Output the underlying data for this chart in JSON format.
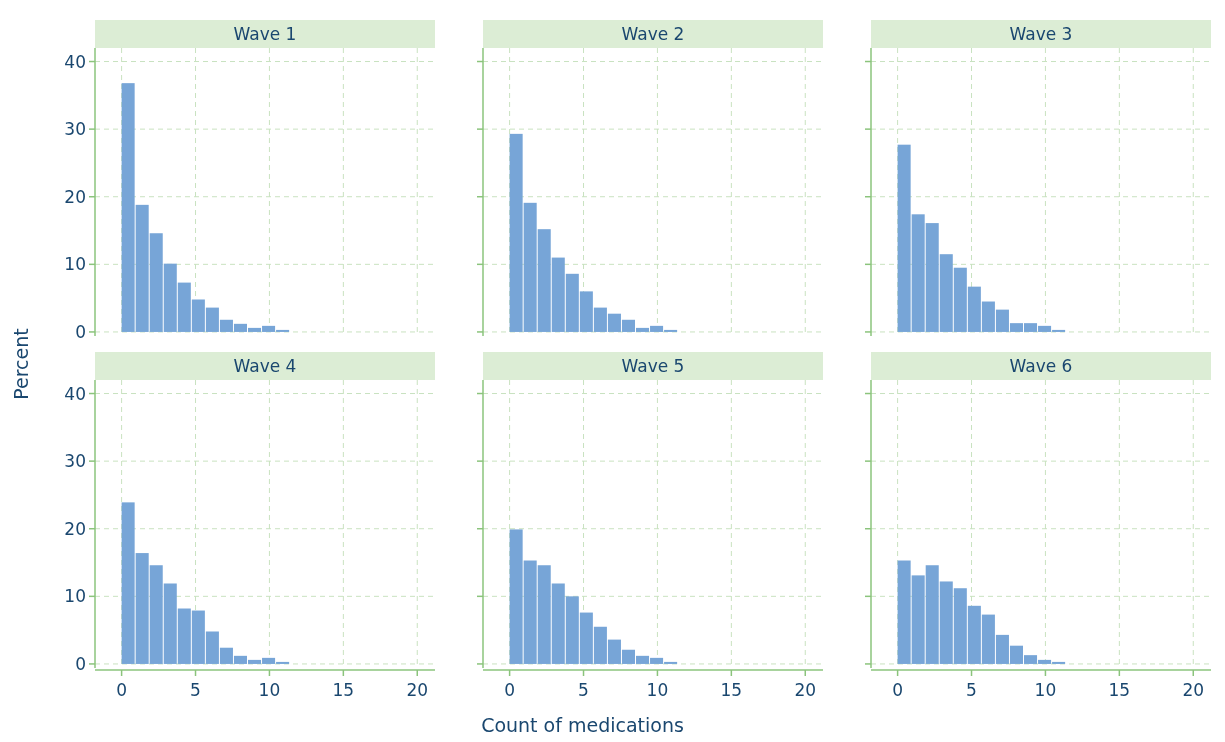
{
  "chart_data": [
    {
      "type": "histogram",
      "title": "Wave 1",
      "ylabel": "Percent",
      "bins": [
        0,
        0.95,
        1.9,
        2.85,
        3.8,
        4.75,
        5.7,
        6.65,
        7.6,
        8.55,
        9.5,
        10.45,
        11.4
      ],
      "values": [
        36.8,
        18.8,
        14.6,
        10.1,
        7.3,
        4.8,
        3.6,
        1.8,
        1.2,
        0.6,
        0.9,
        0.3
      ],
      "color": "#77a5d7",
      "xlim": [
        -1.8,
        21.2
      ],
      "xticks": [
        0,
        5,
        10,
        15,
        20
      ],
      "ylim": [
        -0.6,
        42
      ],
      "yticks": [
        0,
        10,
        20,
        30,
        40
      ],
      "grid": true,
      "tick_labels": "y"
    },
    {
      "type": "histogram",
      "title": "Wave 2",
      "bins": [
        0,
        0.95,
        1.9,
        2.85,
        3.8,
        4.75,
        5.7,
        6.65,
        7.6,
        8.55,
        9.5,
        10.45,
        11.4
      ],
      "values": [
        29.3,
        19.1,
        15.2,
        11.0,
        8.6,
        6.0,
        3.6,
        2.7,
        1.8,
        0.6,
        0.9,
        0.3
      ],
      "color": "#77a5d7",
      "xlim": [
        -1.8,
        21.2
      ],
      "xticks": [
        0,
        5,
        10,
        15,
        20
      ],
      "ylim": [
        -0.6,
        42
      ],
      "yticks": [
        0,
        10,
        20,
        30,
        40
      ],
      "grid": true,
      "tick_labels": false
    },
    {
      "type": "histogram",
      "title": "Wave 3",
      "bins": [
        0,
        0.95,
        1.9,
        2.85,
        3.8,
        4.75,
        5.7,
        6.65,
        7.6,
        8.55,
        9.5,
        10.45,
        11.4
      ],
      "values": [
        27.7,
        17.4,
        16.1,
        11.5,
        9.5,
        6.7,
        4.5,
        3.3,
        1.3,
        1.3,
        0.9,
        0.3
      ],
      "color": "#77a5d7",
      "xlim": [
        -1.8,
        21.2
      ],
      "xticks": [
        0,
        5,
        10,
        15,
        20
      ],
      "ylim": [
        -0.6,
        42
      ],
      "yticks": [
        0,
        10,
        20,
        30,
        40
      ],
      "grid": true,
      "tick_labels": false
    },
    {
      "type": "histogram",
      "title": "Wave 4",
      "bins": [
        0,
        0.95,
        1.9,
        2.85,
        3.8,
        4.75,
        5.7,
        6.65,
        7.6,
        8.55,
        9.5,
        10.45,
        11.4
      ],
      "values": [
        23.9,
        16.4,
        14.6,
        11.9,
        8.2,
        7.9,
        4.8,
        2.4,
        1.2,
        0.6,
        0.9,
        0.3
      ],
      "color": "#77a5d7",
      "xlim": [
        -1.8,
        21.2
      ],
      "xticks": [
        0,
        5,
        10,
        15,
        20
      ],
      "ylim": [
        -0.6,
        42
      ],
      "yticks": [
        0,
        10,
        20,
        30,
        40
      ],
      "grid": true
    },
    {
      "type": "histogram",
      "title": "Wave 5",
      "xlabel": "Count of medications",
      "bins": [
        0,
        0.95,
        1.9,
        2.85,
        3.8,
        4.75,
        5.7,
        6.65,
        7.6,
        8.55,
        9.5,
        10.45,
        11.4
      ],
      "values": [
        19.9,
        15.3,
        14.6,
        11.9,
        10.0,
        7.6,
        5.5,
        3.6,
        2.1,
        1.2,
        0.9,
        0.3
      ],
      "color": "#77a5d7",
      "xlim": [
        -1.8,
        21.2
      ],
      "xticks": [
        0,
        5,
        10,
        15,
        20
      ],
      "ylim": [
        -0.6,
        42
      ],
      "yticks": [
        0,
        10,
        20,
        30,
        40
      ],
      "grid": true,
      "tick_labels": "x"
    },
    {
      "type": "histogram",
      "title": "Wave 6",
      "bins": [
        0,
        0.95,
        1.9,
        2.85,
        3.8,
        4.75,
        5.7,
        6.65,
        7.6,
        8.55,
        9.5,
        10.45,
        11.4
      ],
      "values": [
        15.3,
        13.1,
        14.6,
        12.2,
        11.2,
        8.6,
        7.3,
        4.3,
        2.7,
        1.3,
        0.6,
        0.3
      ],
      "color": "#77a5d7",
      "xlim": [
        -1.8,
        21.2
      ],
      "xticks": [
        0,
        5,
        10,
        15,
        20
      ],
      "ylim": [
        -0.6,
        42
      ],
      "yticks": [
        0,
        10,
        20,
        30,
        40
      ],
      "grid": true,
      "tick_labels": "x"
    }
  ]
}
